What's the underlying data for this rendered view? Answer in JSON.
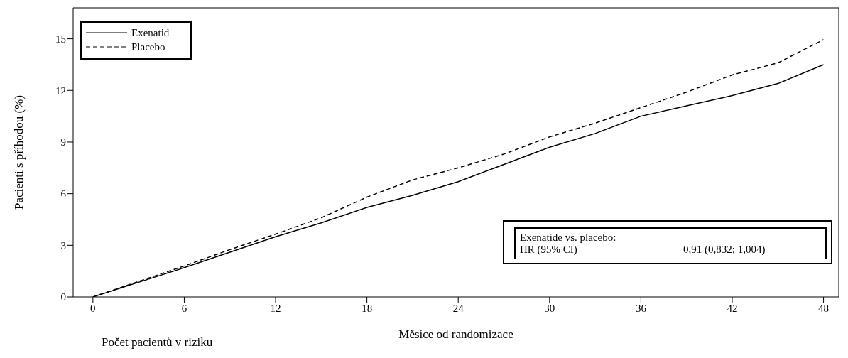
{
  "chart_data": {
    "type": "line",
    "xlabel": "Měsíce od randomizace",
    "ylabel": "Pacienti s příhodou (%)",
    "x": [
      0,
      3,
      6,
      9,
      12,
      15,
      18,
      21,
      24,
      27,
      30,
      33,
      36,
      39,
      42,
      45,
      48
    ],
    "series": [
      {
        "name": "Exenatid",
        "color": "#000000",
        "line_style": "solid",
        "values": [
          0,
          0.85,
          1.7,
          2.6,
          3.5,
          4.3,
          5.2,
          5.9,
          6.7,
          7.7,
          8.7,
          9.5,
          10.5,
          11.1,
          11.7,
          12.4,
          13.5
        ]
      },
      {
        "name": "Placebo",
        "color": "#000000",
        "line_style": "dashed",
        "values": [
          0,
          0.9,
          1.8,
          2.75,
          3.65,
          4.6,
          5.8,
          6.8,
          7.5,
          8.3,
          9.3,
          10.1,
          11.0,
          11.9,
          12.9,
          13.6,
          14.95
        ]
      }
    ],
    "xlim": [
      -1.3,
      49
    ],
    "xticks": [
      0,
      6,
      12,
      18,
      24,
      30,
      36,
      42,
      48
    ],
    "ylim": [
      0,
      16.8
    ],
    "yticks": [
      0,
      3,
      6,
      9,
      12,
      15
    ],
    "legend": "top left",
    "marker": "none",
    "grid": false,
    "annotations": [
      "Exenatide vs. placebo:",
      "HR (95% CI)",
      "0,91 (0,832; 1,004)",
      "Počet pacientů v riziku"
    ]
  }
}
